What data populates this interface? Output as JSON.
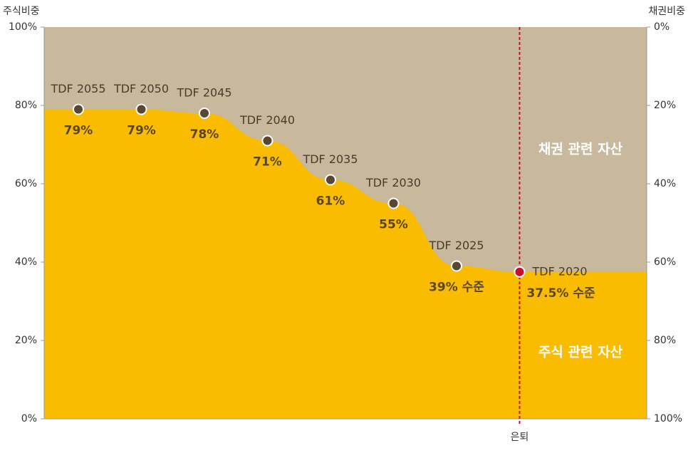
{
  "chart_data": {
    "type": "area",
    "y_title": "주식비중",
    "y2_title": "채권비중",
    "categories": [
      "TDF 2055",
      "TDF 2050",
      "TDF 2045",
      "TDF 2040",
      "TDF 2035",
      "TDF 2030",
      "TDF 2025",
      "TDF 2020"
    ],
    "series": [
      {
        "name": "주식 관련 자산",
        "color": "#f9bc00",
        "values": [
          79,
          79,
          78,
          71,
          61,
          55,
          39,
          37.5
        ],
        "value_labels": [
          "79%",
          "79%",
          "78%",
          "71%",
          "61%",
          "55%",
          "39% 수준",
          "37.5% 수준"
        ]
      }
    ],
    "background_name": "채권 관련 자산",
    "background_color": "#c8b99c",
    "retirement_label": "은퇴",
    "retirement_color": "#c8102e",
    "ylim": [
      0,
      100
    ],
    "yticks": [
      {
        "value": 0,
        "label": "0%"
      },
      {
        "value": 20,
        "label": "20%"
      },
      {
        "value": 40,
        "label": "40%"
      },
      {
        "value": 60,
        "label": "60%"
      },
      {
        "value": 80,
        "label": "80%"
      },
      {
        "value": 100,
        "label": "100%"
      }
    ],
    "y2lim": [
      100,
      0
    ],
    "y2ticks": [
      {
        "value": 0,
        "label": "0%"
      },
      {
        "value": 20,
        "label": "20%"
      },
      {
        "value": 40,
        "label": "40%"
      },
      {
        "value": 60,
        "label": "60%"
      },
      {
        "value": 80,
        "label": "80%"
      },
      {
        "value": 100,
        "label": "100%"
      }
    ]
  }
}
